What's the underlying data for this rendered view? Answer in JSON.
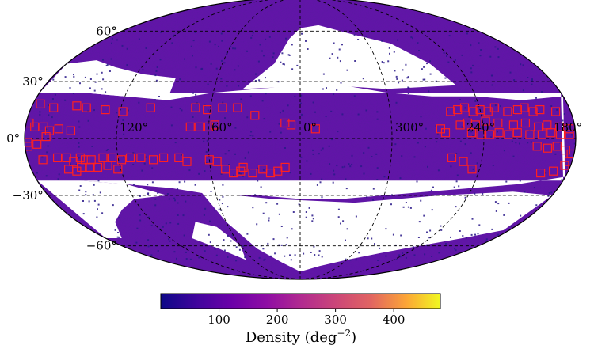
{
  "chart_data": {
    "type": "heatmap",
    "projection": "mollweide",
    "coordinate_system": "galactic",
    "lon_direction": "increasing to the left",
    "lat_ticks": [
      60,
      30,
      0,
      -30,
      -60
    ],
    "lat_tick_labels": [
      "60°",
      "30°",
      "0°",
      "−30°",
      "−60°"
    ],
    "lon_ticks": [
      120,
      60,
      0,
      300,
      240,
      180
    ],
    "lon_tick_labels": [
      "120°",
      "60°",
      "0°",
      "300°",
      "240°",
      "180°"
    ],
    "grid": true,
    "grid_style": "dashed",
    "colormap": "plasma",
    "colorbar": {
      "orientation": "horizontal",
      "placement": "bottom",
      "range": [
        0,
        480
      ],
      "ticks": [
        100,
        200,
        300,
        400
      ],
      "tick_labels": [
        "100",
        "200",
        "300",
        "400"
      ],
      "label_main": "Density (deg",
      "label_exp": "−2",
      "label_close": ")"
    },
    "empty_region_color": "#ffffff",
    "density_background": "purple (≈50–120 deg⁻² at high latitude)",
    "marker_series": {
      "marker": "open square",
      "color": "#ff2020",
      "points": [
        [
          175,
          18
        ],
        [
          165,
          16
        ],
        [
          150,
          17
        ],
        [
          143,
          16
        ],
        [
          130,
          15
        ],
        [
          118,
          14
        ],
        [
          100,
          16
        ],
        [
          70,
          16
        ],
        [
          62,
          15
        ],
        [
          52,
          16
        ],
        [
          42,
          16
        ],
        [
          30,
          12
        ],
        [
          10,
          8
        ],
        [
          6,
          7
        ],
        [
          -10,
          5
        ],
        [
          178,
          8
        ],
        [
          174,
          6
        ],
        [
          168,
          6
        ],
        [
          164,
          4
        ],
        [
          158,
          5
        ],
        [
          150,
          4
        ],
        [
          72,
          6
        ],
        [
          66,
          6
        ],
        [
          60,
          6
        ],
        [
          56,
          7
        ],
        [
          178,
          -4
        ],
        [
          178,
          -2
        ],
        [
          172,
          -3
        ],
        [
          166,
          1
        ],
        [
          170,
          -11
        ],
        [
          160,
          -10
        ],
        [
          154,
          -10
        ],
        [
          150,
          -12
        ],
        [
          145,
          -10
        ],
        [
          142,
          -11
        ],
        [
          138,
          -11
        ],
        [
          130,
          -10
        ],
        [
          124,
          -10
        ],
        [
          118,
          -11
        ],
        [
          112,
          -10
        ],
        [
          105,
          -10
        ],
        [
          97,
          -11
        ],
        [
          90,
          -10
        ],
        [
          80,
          -10
        ],
        [
          75,
          -12
        ],
        [
          155,
          -16
        ],
        [
          150,
          -17
        ],
        [
          146,
          -15
        ],
        [
          140,
          -15
        ],
        [
          135,
          -15
        ],
        [
          128,
          -14
        ],
        [
          122,
          -16
        ],
        [
          60,
          -11
        ],
        [
          55,
          -12
        ],
        [
          50,
          -16
        ],
        [
          45,
          -18
        ],
        [
          40,
          -17
        ],
        [
          38,
          -15
        ],
        [
          32,
          -18
        ],
        [
          25,
          -16
        ],
        [
          20,
          -18
        ],
        [
          15,
          -17
        ],
        [
          10,
          -15
        ],
        [
          -100,
          14
        ],
        [
          -105,
          15
        ],
        [
          -110,
          16
        ],
        [
          -115,
          14
        ],
        [
          -120,
          15
        ],
        [
          -125,
          14
        ],
        [
          -130,
          16
        ],
        [
          -138,
          14
        ],
        [
          -145,
          15
        ],
        [
          -150,
          16
        ],
        [
          -155,
          14
        ],
        [
          -160,
          15
        ],
        [
          -170,
          14
        ],
        [
          -105,
          7
        ],
        [
          -110,
          8
        ],
        [
          -115,
          7
        ],
        [
          -122,
          9
        ],
        [
          -130,
          8
        ],
        [
          -140,
          7
        ],
        [
          -148,
          8
        ],
        [
          -156,
          6
        ],
        [
          -162,
          7
        ],
        [
          -170,
          6
        ],
        [
          -176,
          5
        ],
        [
          -112,
          3
        ],
        [
          -118,
          2
        ],
        [
          -124,
          2
        ],
        [
          -130,
          3
        ],
        [
          -136,
          2
        ],
        [
          -142,
          3
        ],
        [
          -150,
          2
        ],
        [
          -158,
          2
        ],
        [
          -164,
          3
        ],
        [
          -170,
          2
        ],
        [
          -176,
          2
        ],
        [
          -92,
          5
        ],
        [
          -95,
          3
        ],
        [
          -155,
          -4
        ],
        [
          -162,
          -5
        ],
        [
          -168,
          -4
        ],
        [
          -174,
          -6
        ],
        [
          -178,
          -8
        ],
        [
          -100,
          -10
        ],
        [
          -108,
          -12
        ],
        [
          -115,
          -16
        ],
        [
          -162,
          -18
        ],
        [
          -170,
          -17
        ],
        [
          -176,
          -14
        ],
        [
          -178,
          -12
        ]
      ]
    }
  }
}
